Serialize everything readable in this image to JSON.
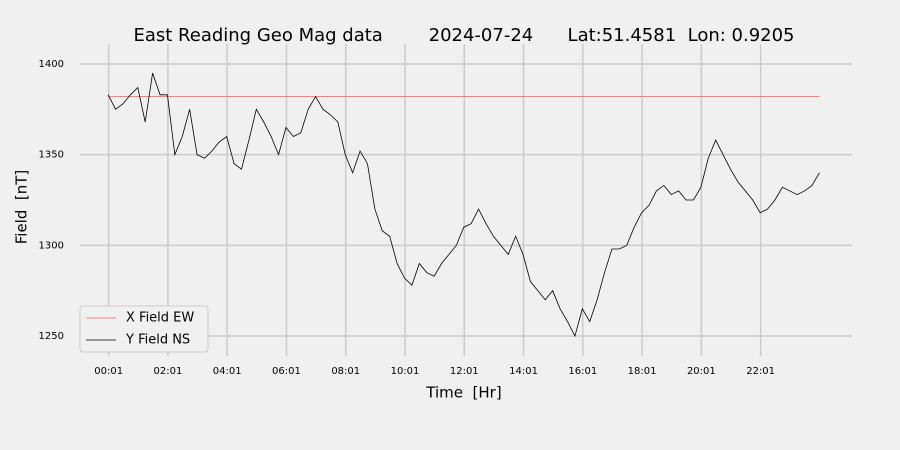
{
  "chart_data": {
    "type": "line",
    "title": "East Reading Geo Mag data        2024-07-24      Lat:51.4581  Lon: 0.9205",
    "x_label": "Time  [Hr]",
    "y_label": "Field  [nT]",
    "xlim": [
      -0.95,
      25.1
    ],
    "ylim": [
      1239,
      1411
    ],
    "xticks": [
      {
        "value": 0.0167,
        "label": "00:01"
      },
      {
        "value": 2.0167,
        "label": "02:01"
      },
      {
        "value": 4.0167,
        "label": "04:01"
      },
      {
        "value": 6.0167,
        "label": "06:01"
      },
      {
        "value": 8.0167,
        "label": "08:01"
      },
      {
        "value": 10.0167,
        "label": "10:01"
      },
      {
        "value": 12.0167,
        "label": "12:01"
      },
      {
        "value": 14.0167,
        "label": "14:01"
      },
      {
        "value": 16.0167,
        "label": "16:01"
      },
      {
        "value": 18.0167,
        "label": "18:01"
      },
      {
        "value": 20.0167,
        "label": "20:01"
      },
      {
        "value": 22.0167,
        "label": "22:01"
      }
    ],
    "yticks": [
      1250,
      1300,
      1350,
      1400
    ],
    "grid": true,
    "legend": "lower left",
    "series": [
      {
        "name": "X Field EW",
        "color": "#e06666",
        "x": [
          0,
          24
        ],
        "values": [
          1382,
          1382
        ]
      },
      {
        "name": "Y Field NS",
        "color": "#000000",
        "x": [
          0,
          0.25,
          0.5,
          0.75,
          1,
          1.25,
          1.5,
          1.75,
          2,
          2.25,
          2.5,
          2.75,
          3,
          3.25,
          3.5,
          3.75,
          4,
          4.25,
          4.5,
          4.75,
          5,
          5.25,
          5.5,
          5.75,
          6,
          6.25,
          6.5,
          6.75,
          7,
          7.25,
          7.5,
          7.75,
          8,
          8.25,
          8.5,
          8.75,
          9,
          9.25,
          9.5,
          9.75,
          10,
          10.25,
          10.5,
          10.75,
          11,
          11.25,
          11.5,
          11.75,
          12,
          12.25,
          12.5,
          12.75,
          13,
          13.25,
          13.5,
          13.75,
          14,
          14.25,
          14.5,
          14.75,
          15,
          15.25,
          15.5,
          15.75,
          16,
          16.25,
          16.5,
          16.75,
          17,
          17.25,
          17.5,
          17.75,
          18,
          18.25,
          18.5,
          18.75,
          19,
          19.25,
          19.5,
          19.75,
          20,
          20.25,
          20.5,
          20.75,
          21,
          21.25,
          21.5,
          21.75,
          22,
          22.25,
          22.5,
          22.75,
          23,
          23.25,
          23.5,
          23.75,
          24
        ],
        "values": [
          1383,
          1375,
          1378,
          1383,
          1387,
          1368,
          1395,
          1383,
          1383,
          1350,
          1360,
          1375,
          1350,
          1348,
          1352,
          1357,
          1360,
          1345,
          1342,
          1358,
          1375,
          1368,
          1360,
          1350,
          1365,
          1360,
          1362,
          1375,
          1382,
          1375,
          1372,
          1368,
          1350,
          1340,
          1352,
          1345,
          1320,
          1308,
          1305,
          1290,
          1282,
          1278,
          1290,
          1285,
          1283,
          1290,
          1295,
          1300,
          1310,
          1312,
          1320,
          1312,
          1305,
          1300,
          1295,
          1305,
          1295,
          1280,
          1275,
          1270,
          1275,
          1265,
          1258,
          1250,
          1265,
          1258,
          1270,
          1285,
          1298,
          1298,
          1300,
          1310,
          1318,
          1322,
          1330,
          1333,
          1328,
          1330,
          1325,
          1325,
          1332,
          1348,
          1358,
          1350,
          1342,
          1335,
          1330,
          1325,
          1318,
          1320,
          1325,
          1332,
          1330,
          1328,
          1330,
          1333,
          1340
        ]
      }
    ]
  }
}
